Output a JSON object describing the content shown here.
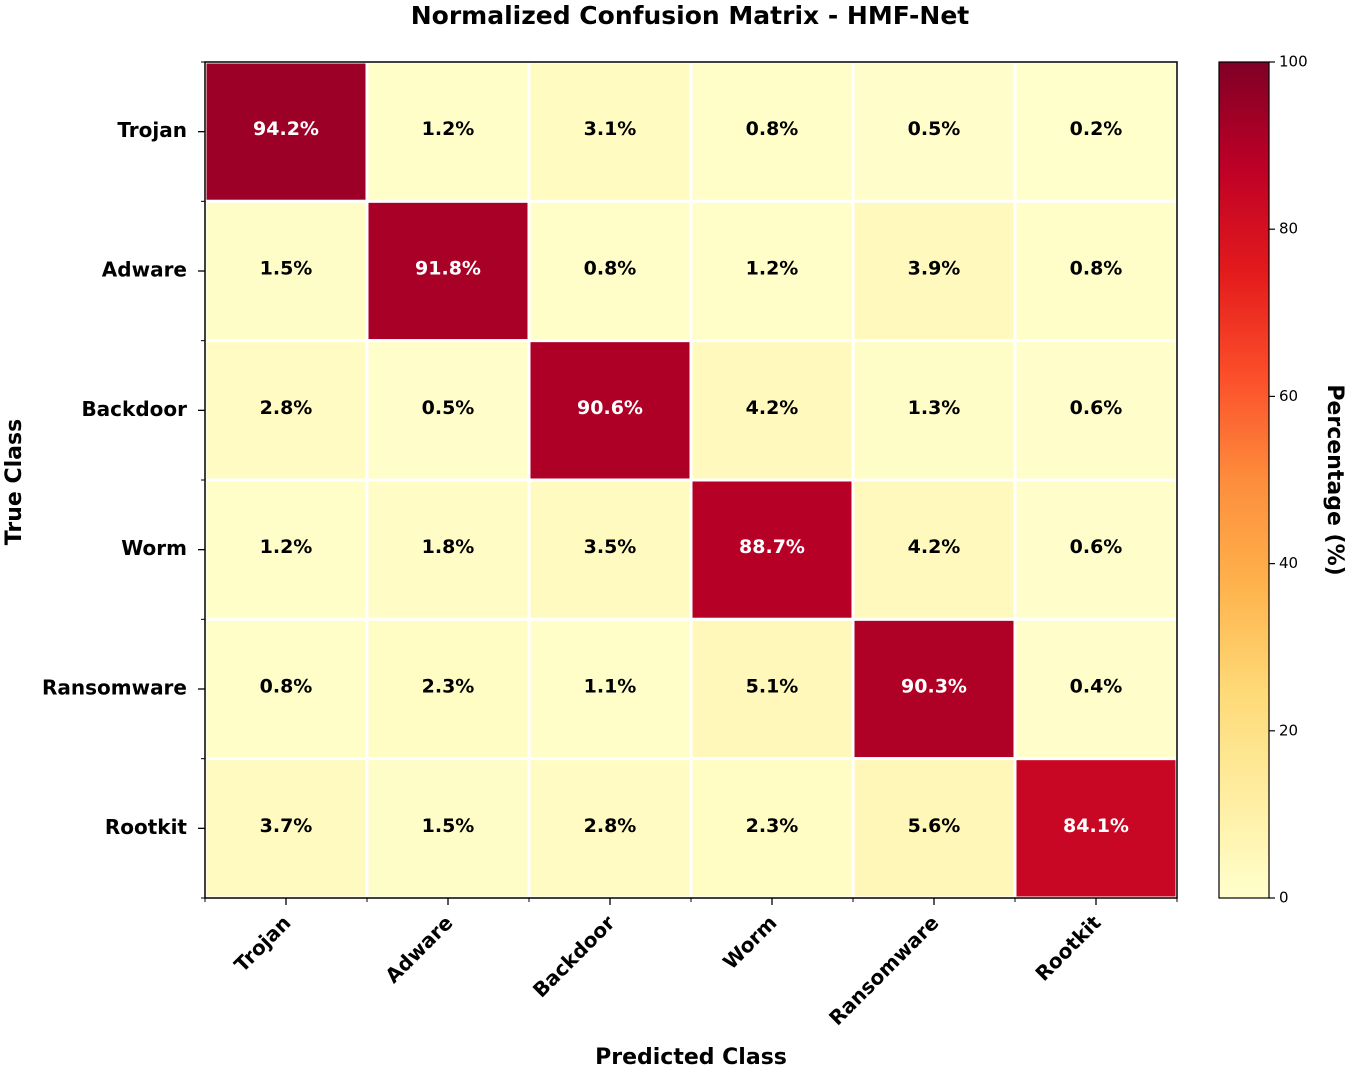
{
  "chart_data": {
    "type": "heatmap",
    "title": "Normalized Confusion Matrix - HMF-Net",
    "xlabel": "Predicted Class",
    "ylabel": "True Class",
    "x_categories": [
      "Trojan",
      "Adware",
      "Backdoor",
      "Worm",
      "Ransomware",
      "Rootkit"
    ],
    "y_categories": [
      "Trojan",
      "Adware",
      "Backdoor",
      "Worm",
      "Ransomware",
      "Rootkit"
    ],
    "values": [
      [
        94.2,
        1.2,
        3.1,
        0.8,
        0.5,
        0.2
      ],
      [
        1.5,
        91.8,
        0.8,
        1.2,
        3.9,
        0.8
      ],
      [
        2.8,
        0.5,
        90.6,
        4.2,
        1.3,
        0.6
      ],
      [
        1.2,
        1.8,
        3.5,
        88.7,
        4.2,
        0.6
      ],
      [
        0.8,
        2.3,
        1.1,
        5.1,
        90.3,
        0.4
      ],
      [
        3.7,
        1.5,
        2.8,
        2.3,
        5.6,
        84.1
      ]
    ],
    "value_format": "{v}%",
    "colormap": "YlOrRd",
    "colorbar": {
      "label": "Percentage (%)",
      "range": [
        0,
        100
      ],
      "ticks": [
        0,
        20,
        40,
        60,
        80,
        100
      ]
    },
    "grid": false
  }
}
